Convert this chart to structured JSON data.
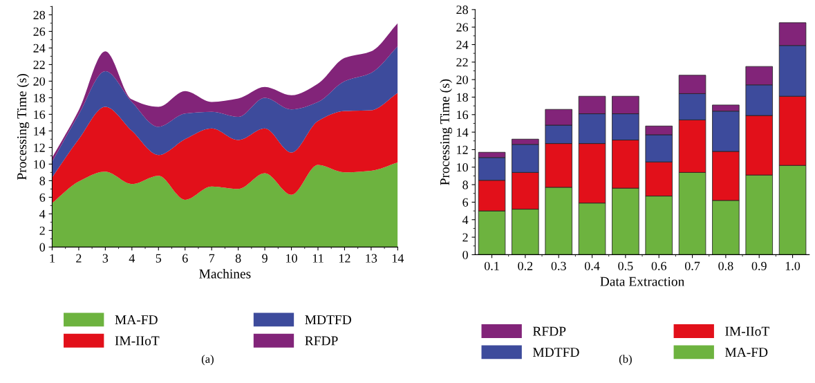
{
  "chart_data": [
    {
      "type": "area",
      "stacked": true,
      "xlabel": "Machines",
      "ylabel": "Processing Time (s)",
      "annotations": [
        "(a)"
      ],
      "x": [
        1,
        2,
        3,
        4,
        5,
        6,
        7,
        8,
        9,
        10,
        11,
        12,
        13,
        14
      ],
      "xlim": [
        1,
        14
      ],
      "xticks": [
        1,
        2,
        3,
        4,
        5,
        6,
        7,
        8,
        9,
        10,
        11,
        12,
        13,
        14
      ],
      "ylim": [
        0,
        29
      ],
      "yticks": [
        0,
        2,
        4,
        6,
        8,
        10,
        12,
        14,
        16,
        18,
        20,
        22,
        24,
        26,
        28
      ],
      "grid": false,
      "legend": "bottom",
      "series": [
        {
          "name": "MA-FD",
          "color": "#6db33f",
          "values": [
            5.3,
            7.9,
            9.1,
            7.6,
            8.6,
            5.7,
            7.3,
            7.0,
            8.9,
            6.3,
            9.9,
            9.0,
            9.2,
            10.2
          ]
        },
        {
          "name": "IM-IIoT",
          "color": "#e2101a",
          "values": [
            3.1,
            5.1,
            7.8,
            6.4,
            2.5,
            7.3,
            7.0,
            5.9,
            5.4,
            5.1,
            5.3,
            7.4,
            7.3,
            8.4
          ]
        },
        {
          "name": "MDTFD",
          "color": "#3d4b9c",
          "values": [
            1.9,
            3.0,
            4.3,
            3.5,
            3.4,
            3.1,
            2.0,
            2.8,
            3.7,
            5.2,
            2.3,
            3.6,
            4.5,
            5.6
          ]
        },
        {
          "name": "RFDP",
          "color": "#822479",
          "values": [
            0.5,
            0.5,
            2.4,
            0.3,
            2.4,
            2.7,
            1.2,
            2.2,
            1.3,
            1.7,
            2.2,
            2.8,
            2.6,
            2.8
          ]
        }
      ]
    },
    {
      "type": "bar",
      "stacked": true,
      "xlabel": "Data Extraction",
      "ylabel": "Processing Time (s)",
      "annotations": [
        "(b)"
      ],
      "categories": [
        "0.1",
        "0.2",
        "0.3",
        "0.4",
        "0.5",
        "0.6",
        "0.7",
        "0.8",
        "0.9",
        "1.0"
      ],
      "ylim": [
        0,
        28
      ],
      "yticks": [
        0,
        2,
        4,
        6,
        8,
        10,
        12,
        14,
        16,
        18,
        20,
        22,
        24,
        26,
        28
      ],
      "grid": false,
      "legend": "bottom",
      "series": [
        {
          "name": "MA-FD",
          "color": "#6db33f",
          "values": [
            5.0,
            5.2,
            7.7,
            5.9,
            7.6,
            6.7,
            9.4,
            6.2,
            9.1,
            10.2
          ]
        },
        {
          "name": "IM-IIoT",
          "color": "#e2101a",
          "values": [
            3.5,
            4.2,
            5.0,
            6.8,
            5.5,
            3.9,
            6.0,
            5.6,
            6.8,
            7.9
          ]
        },
        {
          "name": "MDTFD",
          "color": "#3d4b9c",
          "values": [
            2.6,
            3.2,
            2.1,
            3.4,
            3.0,
            3.1,
            3.0,
            4.6,
            3.5,
            5.8
          ]
        },
        {
          "name": "RFDP",
          "color": "#822479",
          "values": [
            0.6,
            0.6,
            1.8,
            2.0,
            2.0,
            1.0,
            2.1,
            0.7,
            2.1,
            2.6
          ]
        }
      ]
    }
  ]
}
